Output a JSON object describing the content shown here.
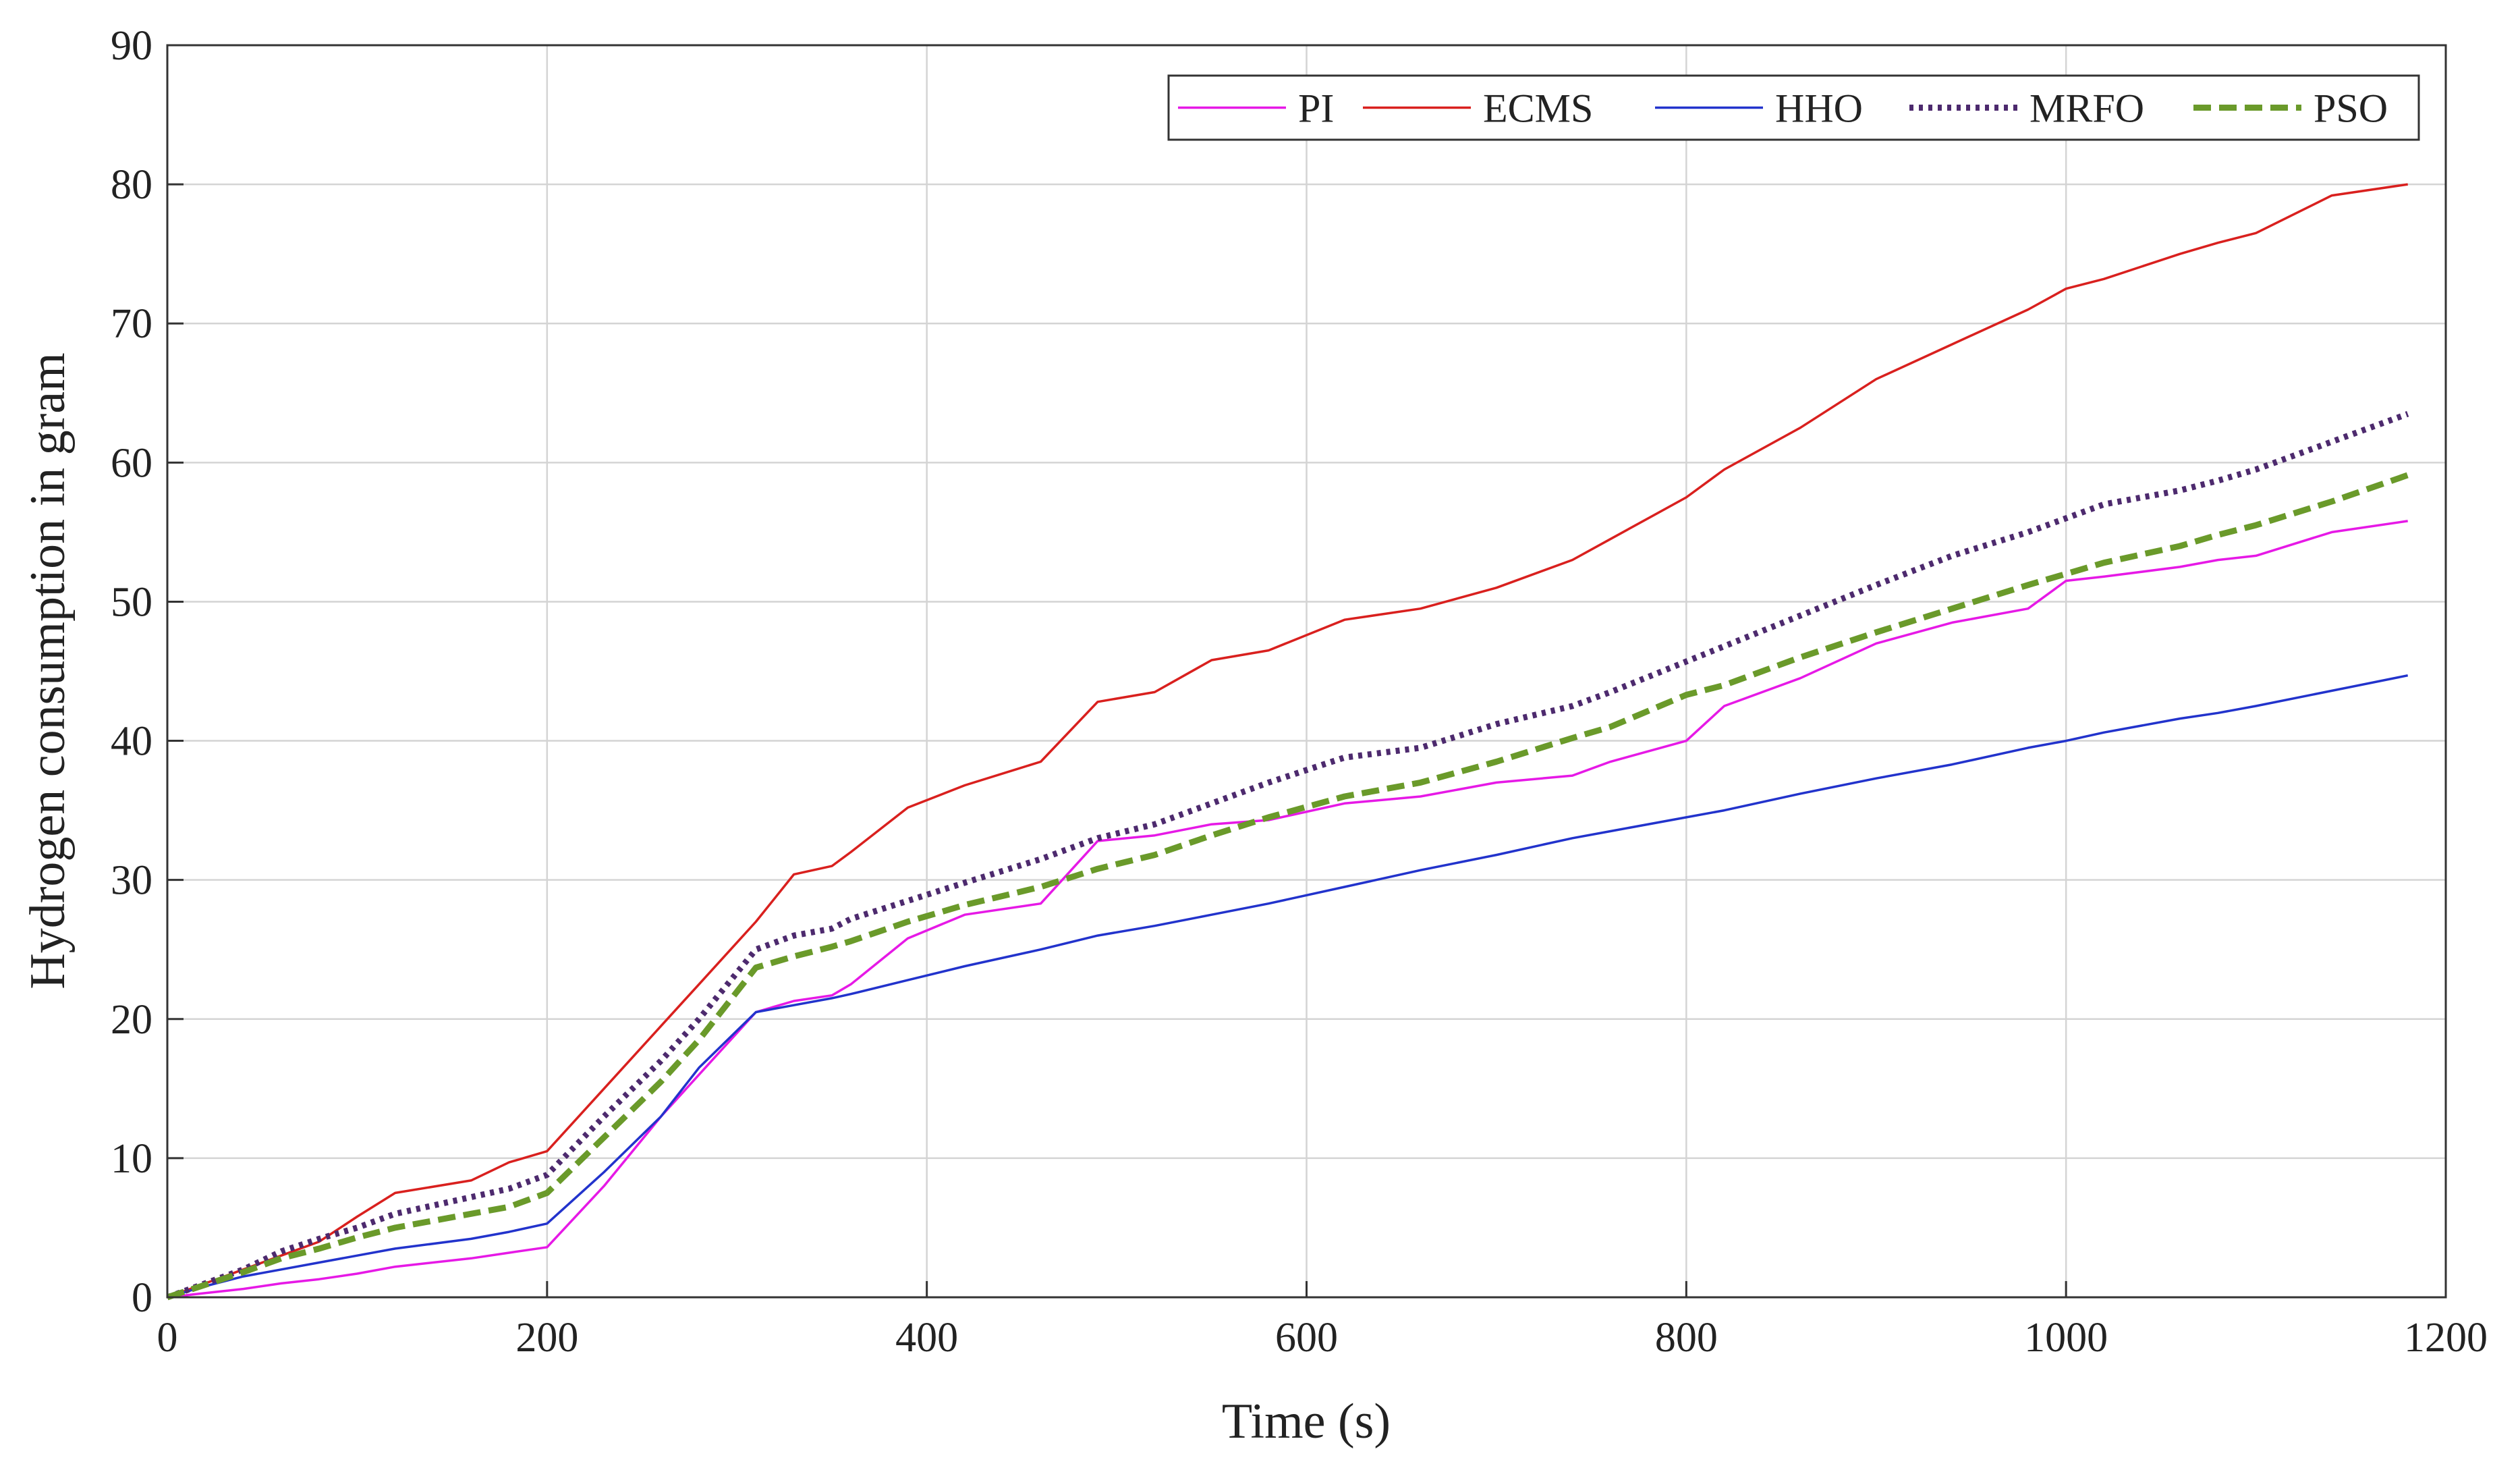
{
  "chart_data": {
    "type": "line",
    "xlabel": "Time (s)",
    "ylabel": "Hydrogen consumption in gram",
    "xlim": [
      0,
      1200
    ],
    "xticks": [
      0,
      200,
      400,
      600,
      800,
      1000,
      1200
    ],
    "ylim": [
      0,
      90
    ],
    "yticks": [
      0,
      10,
      20,
      30,
      40,
      50,
      60,
      70,
      80,
      90
    ],
    "grid": true,
    "legend": "upper right",
    "x": [
      0,
      20,
      40,
      60,
      80,
      100,
      120,
      160,
      180,
      200,
      230,
      260,
      280,
      310,
      330,
      350,
      360,
      390,
      420,
      460,
      490,
      520,
      550,
      580,
      620,
      660,
      700,
      740,
      760,
      800,
      820,
      860,
      900,
      940,
      980,
      1000,
      1020,
      1060,
      1080,
      1100,
      1140,
      1180
    ],
    "series": [
      {
        "name": "PI",
        "color": "#e619e6",
        "style": "solid",
        "values": [
          0,
          0.3,
          0.6,
          1,
          1.3,
          1.7,
          2.2,
          2.8,
          3.2,
          3.6,
          8,
          13,
          16,
          20.5,
          21.3,
          21.7,
          22.5,
          25.8,
          27.5,
          28.3,
          32.8,
          33.2,
          34,
          34.3,
          35.5,
          36,
          37,
          37.5,
          38.5,
          40,
          42.5,
          44.5,
          47,
          48.5,
          49.5,
          51.5,
          51.8,
          52.5,
          53,
          53.3,
          55,
          55.8
        ]
      },
      {
        "name": "ECMS",
        "color": "#d9201e",
        "style": "solid",
        "values": [
          0,
          1,
          2,
          3,
          4,
          5.8,
          7.5,
          8.4,
          9.7,
          10.5,
          15,
          19.5,
          22.5,
          27,
          30.4,
          31,
          32,
          35.2,
          36.8,
          38.5,
          42.8,
          43.5,
          45.8,
          46.5,
          48.7,
          49.5,
          51,
          53,
          54.5,
          57.5,
          59.5,
          62.5,
          66,
          68.5,
          71,
          72.5,
          73.2,
          75,
          75.8,
          76.5,
          79.2,
          80
        ]
      },
      {
        "name": "HHO",
        "color": "#2233cc",
        "style": "solid",
        "values": [
          0,
          0.8,
          1.5,
          2,
          2.5,
          3,
          3.5,
          4.2,
          4.7,
          5.3,
          9,
          13,
          16.5,
          20.5,
          21,
          21.5,
          21.8,
          22.8,
          23.8,
          25,
          26,
          26.7,
          27.5,
          28.3,
          29.5,
          30.7,
          31.8,
          33,
          33.5,
          34.5,
          35,
          36.2,
          37.3,
          38.3,
          39.5,
          40,
          40.6,
          41.6,
          42,
          42.5,
          43.6,
          44.7
        ]
      },
      {
        "name": "MRFO",
        "color": "#4d2a6e",
        "style": "dotted",
        "values": [
          0,
          1,
          2,
          3.3,
          4.2,
          5,
          6,
          7.2,
          7.8,
          8.8,
          13,
          17,
          20,
          25,
          26,
          26.5,
          27.2,
          28.5,
          29.8,
          31.5,
          33,
          34,
          35.5,
          37,
          38.8,
          39.5,
          41.2,
          42.5,
          43.5,
          45.7,
          46.8,
          49,
          51.2,
          53.3,
          55,
          56,
          57,
          58,
          58.7,
          59.5,
          61.5,
          63.5
        ]
      },
      {
        "name": "PSO",
        "color": "#6a9a2a",
        "style": "dashed",
        "values": [
          0,
          0.9,
          1.8,
          2.8,
          3.5,
          4.3,
          5,
          6,
          6.5,
          7.5,
          11.5,
          15.5,
          18.5,
          23.7,
          24.5,
          25.2,
          25.6,
          27,
          28.2,
          29.5,
          30.8,
          31.8,
          33.2,
          34.5,
          36,
          37,
          38.5,
          40.2,
          41,
          43.3,
          44,
          46,
          47.8,
          49.5,
          51.2,
          52,
          52.8,
          54,
          54.8,
          55.5,
          57.2,
          59.1
        ]
      }
    ]
  }
}
